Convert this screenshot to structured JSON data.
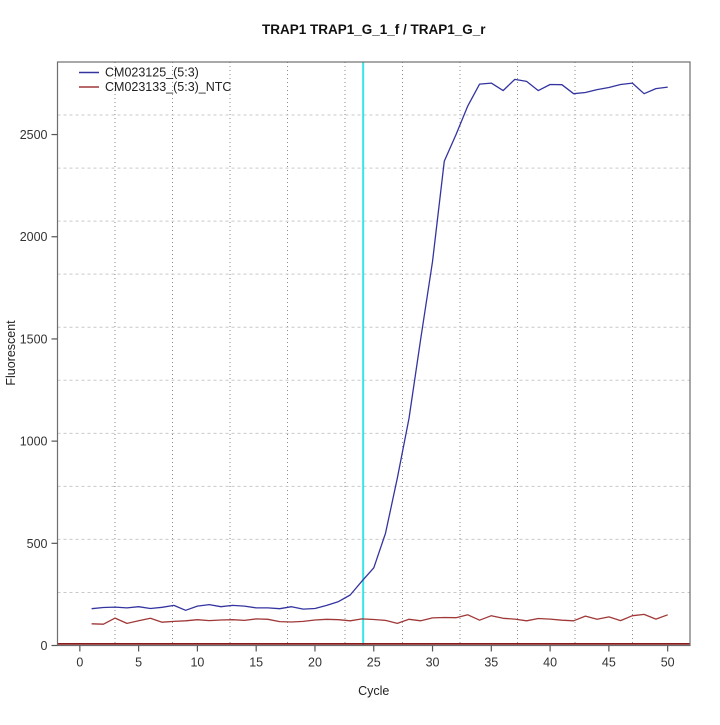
{
  "title": "TRAP1  TRAP1_G_1_f / TRAP1_G_r",
  "chart_data": {
    "type": "line",
    "title": "TRAP1  TRAP1_G_1_f / TRAP1_G_r",
    "xlabel": "Cycle",
    "ylabel": "Fluorescent",
    "xlim": [
      -1.9,
      51.9
    ],
    "ylim": [
      0,
      2855
    ],
    "x_ticks": [
      0,
      5,
      10,
      15,
      20,
      25,
      30,
      35,
      40,
      45,
      50
    ],
    "y_ticks": [
      0,
      500,
      1000,
      1500,
      2000,
      2500
    ],
    "grid": {
      "nx": 11,
      "ny": 11,
      "vertical_style": "dotted",
      "horizontal_style": "dashed",
      "vertical_color": "#8a8a8a",
      "horizontal_color": "#c9c9c9"
    },
    "legend": {
      "position": "top-left"
    },
    "x": [
      1,
      2,
      3,
      4,
      5,
      6,
      7,
      8,
      9,
      10,
      11,
      12,
      13,
      14,
      15,
      16,
      17,
      18,
      19,
      20,
      21,
      22,
      23,
      24,
      25,
      26,
      27,
      28,
      29,
      30,
      31,
      32,
      33,
      34,
      35,
      36,
      37,
      38,
      39,
      40,
      41,
      42,
      43,
      44,
      45,
      46,
      47,
      48,
      49,
      50
    ],
    "series": [
      {
        "name": "CM023125_(5:3)",
        "color": "#3434a0",
        "values": [
          180,
          186,
          188,
          184,
          190,
          181,
          187,
          196,
          172,
          193,
          200,
          190,
          196,
          193,
          184,
          184,
          180,
          190,
          178,
          181,
          196,
          215,
          247,
          315,
          380,
          549,
          818,
          1111,
          1503,
          1878,
          2370,
          2500,
          2640,
          2747,
          2752,
          2715,
          2770,
          2760,
          2715,
          2745,
          2744,
          2700,
          2706,
          2720,
          2730,
          2745,
          2752,
          2700,
          2725,
          2732
        ]
      },
      {
        "name": "CM023133_(5:3)_NTC",
        "color": "#a03838",
        "values": [
          106,
          104,
          134,
          108,
          121,
          133,
          114,
          118,
          121,
          126,
          122,
          125,
          126,
          123,
          130,
          128,
          117,
          115,
          118,
          125,
          128,
          126,
          121,
          130,
          127,
          123,
          108,
          128,
          121,
          135,
          137,
          136,
          150,
          124,
          146,
          133,
          129,
          121,
          132,
          129,
          124,
          121,
          144,
          128,
          140,
          122,
          146,
          152,
          129,
          150
        ]
      }
    ],
    "vline": {
      "x": 24.1,
      "color": "#35e6e6"
    },
    "baseline": {
      "value": 8,
      "color": "#8b1a1a"
    }
  }
}
